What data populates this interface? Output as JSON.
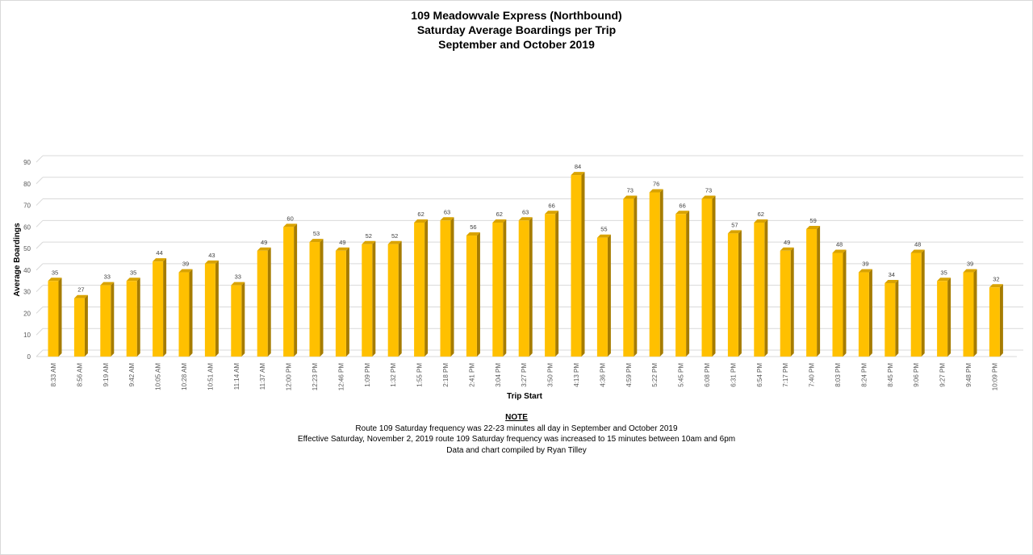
{
  "chart_data": {
    "type": "bar",
    "title": "109 Meadowvale Express (Northbound)",
    "subtitle_1": "Saturday Average Boardings per Trip",
    "subtitle_2": "September and October 2019",
    "xlabel": "Trip Start",
    "ylabel": "Average Boardings",
    "ylim": [
      0,
      90
    ],
    "yticks": [
      0,
      10,
      20,
      30,
      40,
      50,
      60,
      70,
      80,
      90
    ],
    "grid": true,
    "bar_color": "#FFC000",
    "categories": [
      "8:33 AM",
      "8:56 AM",
      "9:19 AM",
      "9:42 AM",
      "10:05 AM",
      "10:28 AM",
      "10:51 AM",
      "11:14 AM",
      "11:37 AM",
      "12:00 PM",
      "12:23 PM",
      "12:46 PM",
      "1:09 PM",
      "1:32 PM",
      "1:55 PM",
      "2:18 PM",
      "2:41 PM",
      "3:04 PM",
      "3:27 PM",
      "3:50 PM",
      "4:13 PM",
      "4:36 PM",
      "4:59 PM",
      "5:22 PM",
      "5:45 PM",
      "6:08 PM",
      "6:31 PM",
      "6:54 PM",
      "7:17 PM",
      "7:40 PM",
      "8:03 PM",
      "8:24 PM",
      "8:45 PM",
      "9:06 PM",
      "9:27 PM",
      "9:48 PM",
      "10:09 PM"
    ],
    "values": [
      35,
      27,
      33,
      35,
      44,
      39,
      43,
      33,
      49,
      60,
      53,
      49,
      52,
      52,
      62,
      63,
      56,
      62,
      63,
      66,
      84,
      55,
      73,
      76,
      66,
      73,
      57,
      62,
      49,
      59,
      48,
      39,
      34,
      48,
      35,
      39,
      32
    ]
  },
  "note": {
    "heading": "NOTE",
    "line1": "Route 109 Saturday frequency was 22-23  minutes all day in September and October 2019",
    "line2": "Effective Saturday, November 2, 2019 route 109 Saturday frequency was increased to 15 minutes between 10am and 6pm",
    "line3": "Data and chart compiled by Ryan Tilley"
  }
}
